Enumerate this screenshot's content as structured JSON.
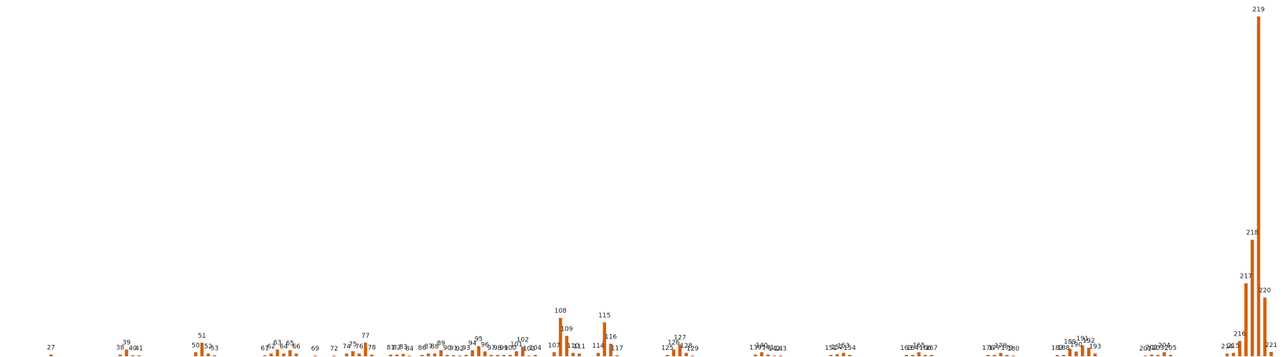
{
  "chart_data": {
    "type": "bar",
    "bar_color": "#d35f0a",
    "grid": false,
    "axes_visible": false,
    "xlim": [
      19,
      227
    ],
    "ylim": [
      0,
      1000
    ],
    "points": [
      {
        "x": 27,
        "value": 5
      },
      {
        "x": 38,
        "value": 5
      },
      {
        "x": 39,
        "value": 20
      },
      {
        "x": 40,
        "value": 3
      },
      {
        "x": 41,
        "value": 3
      },
      {
        "x": 50,
        "value": 12
      },
      {
        "x": 51,
        "value": 40
      },
      {
        "x": 52,
        "value": 8
      },
      {
        "x": 53,
        "value": 3
      },
      {
        "x": 61,
        "value": 3
      },
      {
        "x": 62,
        "value": 8
      },
      {
        "x": 63,
        "value": 20
      },
      {
        "x": 64,
        "value": 8
      },
      {
        "x": 65,
        "value": 18
      },
      {
        "x": 66,
        "value": 8
      },
      {
        "x": 69,
        "value": 2
      },
      {
        "x": 72,
        "value": 2
      },
      {
        "x": 74,
        "value": 8
      },
      {
        "x": 75,
        "value": 15
      },
      {
        "x": 76,
        "value": 8
      },
      {
        "x": 77,
        "value": 40
      },
      {
        "x": 78,
        "value": 5
      },
      {
        "x": 81,
        "value": 5
      },
      {
        "x": 82,
        "value": 5
      },
      {
        "x": 83,
        "value": 7
      },
      {
        "x": 84,
        "value": 2
      },
      {
        "x": 86,
        "value": 4
      },
      {
        "x": 87,
        "value": 8
      },
      {
        "x": 88,
        "value": 8
      },
      {
        "x": 89,
        "value": 18
      },
      {
        "x": 90,
        "value": 4
      },
      {
        "x": 91,
        "value": 3
      },
      {
        "x": 92,
        "value": 2
      },
      {
        "x": 93,
        "value": 4
      },
      {
        "x": 94,
        "value": 18
      },
      {
        "x": 95,
        "value": 30
      },
      {
        "x": 96,
        "value": 14
      },
      {
        "x": 97,
        "value": 4
      },
      {
        "x": 98,
        "value": 4
      },
      {
        "x": 99,
        "value": 4
      },
      {
        "x": 100,
        "value": 4
      },
      {
        "x": 101,
        "value": 15
      },
      {
        "x": 102,
        "value": 28
      },
      {
        "x": 103,
        "value": 2
      },
      {
        "x": 104,
        "value": 4
      },
      {
        "x": 107,
        "value": 12
      },
      {
        "x": 108,
        "value": 113
      },
      {
        "x": 109,
        "value": 60
      },
      {
        "x": 110,
        "value": 10
      },
      {
        "x": 111,
        "value": 8
      },
      {
        "x": 114,
        "value": 10
      },
      {
        "x": 115,
        "value": 100
      },
      {
        "x": 116,
        "value": 37
      },
      {
        "x": 117,
        "value": 3
      },
      {
        "x": 125,
        "value": 4
      },
      {
        "x": 126,
        "value": 20
      },
      {
        "x": 127,
        "value": 35
      },
      {
        "x": 128,
        "value": 10
      },
      {
        "x": 129,
        "value": 2
      },
      {
        "x": 139,
        "value": 5
      },
      {
        "x": 140,
        "value": 12
      },
      {
        "x": 141,
        "value": 5
      },
      {
        "x": 142,
        "value": 2
      },
      {
        "x": 143,
        "value": 2
      },
      {
        "x": 151,
        "value": 4
      },
      {
        "x": 152,
        "value": 6
      },
      {
        "x": 153,
        "value": 10
      },
      {
        "x": 154,
        "value": 4
      },
      {
        "x": 163,
        "value": 4
      },
      {
        "x": 164,
        "value": 4
      },
      {
        "x": 165,
        "value": 12
      },
      {
        "x": 166,
        "value": 4
      },
      {
        "x": 167,
        "value": 4
      },
      {
        "x": 176,
        "value": 4
      },
      {
        "x": 177,
        "value": 4
      },
      {
        "x": 178,
        "value": 10
      },
      {
        "x": 179,
        "value": 4
      },
      {
        "x": 180,
        "value": 2
      },
      {
        "x": 187,
        "value": 4
      },
      {
        "x": 188,
        "value": 4
      },
      {
        "x": 189,
        "value": 22
      },
      {
        "x": 190,
        "value": 14
      },
      {
        "x": 191,
        "value": 32
      },
      {
        "x": 192,
        "value": 25
      },
      {
        "x": 193,
        "value": 8
      },
      {
        "x": 201,
        "value": 2
      },
      {
        "x": 202,
        "value": 5
      },
      {
        "x": 203,
        "value": 4
      },
      {
        "x": 204,
        "value": 12
      },
      {
        "x": 205,
        "value": 4
      },
      {
        "x": 214,
        "value": 8
      },
      {
        "x": 215,
        "value": 10
      },
      {
        "x": 216,
        "value": 45
      },
      {
        "x": 217,
        "value": 215
      },
      {
        "x": 218,
        "value": 343
      },
      {
        "x": 219,
        "value": 1000
      },
      {
        "x": 220,
        "value": 173
      },
      {
        "x": 221,
        "value": 13
      }
    ]
  }
}
